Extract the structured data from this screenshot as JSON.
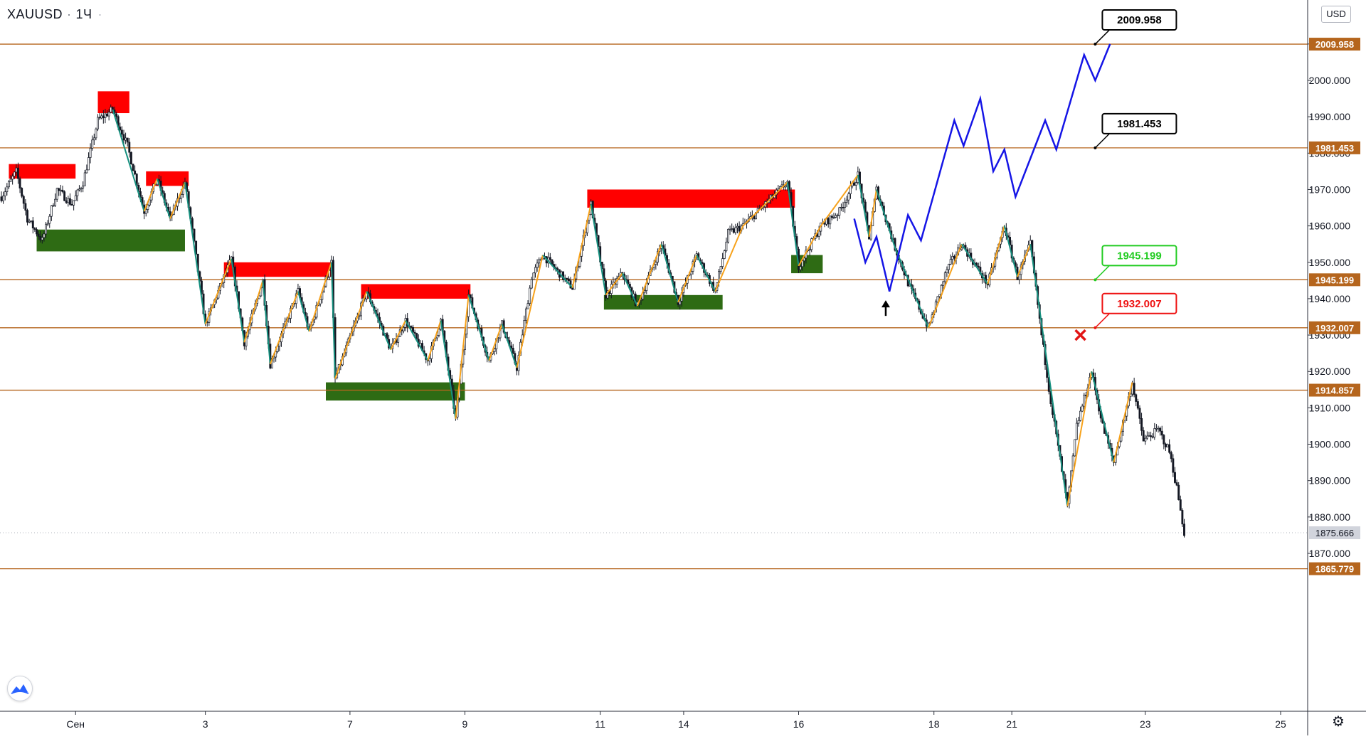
{
  "header": {
    "symbol": "XAUUSD",
    "interval": "1Ч"
  },
  "currency_button": "USD",
  "icons": {
    "logo": "tradingview-logo-icon",
    "settings": "gear-icon"
  },
  "colors": {
    "level_line": "#b5651d",
    "level_label_bg": "#b5651d",
    "bull_candle": "#131722",
    "bear_candle": "#131722",
    "supply_zone": "#ff0000",
    "demand_zone": "#2e6b14",
    "zigzag_up": "#f7a21b",
    "zigzag_down": "#17907f",
    "projection": "#1515e6",
    "current_price_bg": "#d1d4dc"
  },
  "chart_data": {
    "type": "candlestick",
    "title": "",
    "price_axis": {
      "range": [
        1862,
        2012
      ],
      "ticks": [
        {
          "value": 2010,
          "label": "2010.000"
        },
        {
          "value": 2000,
          "label": "2000.000"
        },
        {
          "value": 1990,
          "label": "1990.000"
        },
        {
          "value": 1980,
          "label": "1980.000"
        },
        {
          "value": 1970,
          "label": "1970.000"
        },
        {
          "value": 1960,
          "label": "1960.000"
        },
        {
          "value": 1950,
          "label": "1950.000"
        },
        {
          "value": 1940,
          "label": "1940.000"
        },
        {
          "value": 1930,
          "label": "1930.000"
        },
        {
          "value": 1920,
          "label": "1920.000"
        },
        {
          "value": 1910,
          "label": "1910.000"
        },
        {
          "value": 1900,
          "label": "1900.000"
        },
        {
          "value": 1890,
          "label": "1890.000"
        },
        {
          "value": 1880,
          "label": "1880.000"
        },
        {
          "value": 1870,
          "label": "1870.000"
        }
      ]
    },
    "time_axis": {
      "range": [
        0,
        690
      ],
      "ticks": [
        {
          "t": 40,
          "label": "Сен"
        },
        {
          "t": 110,
          "label": "3"
        },
        {
          "t": 188,
          "label": "7"
        },
        {
          "t": 250,
          "label": "9"
        },
        {
          "t": 323,
          "label": "11"
        },
        {
          "t": 368,
          "label": "14"
        },
        {
          "t": 430,
          "label": "16"
        },
        {
          "t": 503,
          "label": "18"
        },
        {
          "t": 545,
          "label": "21"
        },
        {
          "t": 617,
          "label": "23"
        },
        {
          "t": 690,
          "label": "25"
        }
      ]
    },
    "levels": [
      {
        "price": 2009.958,
        "label": "2009.958"
      },
      {
        "price": 1981.453,
        "label": "1981.453"
      },
      {
        "price": 1945.199,
        "label": "1945.199"
      },
      {
        "price": 1932.007,
        "label": "1932.007"
      },
      {
        "price": 1914.857,
        "label": "1914.857"
      },
      {
        "price": 1865.779,
        "label": "1865.779"
      }
    ],
    "current_price": {
      "price": 1875.666,
      "label": "1875.666"
    },
    "callouts": [
      {
        "text": "2009.958",
        "anchor_t": 590,
        "anchor_price": 2009.958,
        "color": "#000000"
      },
      {
        "text": "1981.453",
        "anchor_t": 590,
        "anchor_price": 1981.453,
        "color": "#000000"
      },
      {
        "text": "1945.199",
        "anchor_t": 590,
        "anchor_price": 1945.199,
        "color": "#22cc22"
      },
      {
        "text": "1932.007",
        "anchor_t": 590,
        "anchor_price": 1932.007,
        "color": "#ee1111"
      }
    ],
    "markers": [
      {
        "type": "arrow-up",
        "t": 477,
        "price": 1938
      },
      {
        "type": "cross",
        "t": 582,
        "price": 1930
      }
    ],
    "zones": [
      {
        "kind": "supply",
        "t0": 4,
        "t1": 40,
        "top": 1977,
        "bottom": 1973
      },
      {
        "kind": "supply",
        "t0": 52,
        "t1": 69,
        "top": 1997,
        "bottom": 1991
      },
      {
        "kind": "supply",
        "t0": 78,
        "t1": 101,
        "top": 1975,
        "bottom": 1971
      },
      {
        "kind": "supply",
        "t0": 120,
        "t1": 178,
        "top": 1950,
        "bottom": 1946
      },
      {
        "kind": "supply",
        "t0": 194,
        "t1": 253,
        "top": 1944,
        "bottom": 1940
      },
      {
        "kind": "supply",
        "t0": 316,
        "t1": 428,
        "top": 1970,
        "bottom": 1965
      },
      {
        "kind": "demand",
        "t0": 19,
        "t1": 99,
        "top": 1959,
        "bottom": 1953
      },
      {
        "kind": "demand",
        "t0": 175,
        "t1": 250,
        "top": 1917,
        "bottom": 1912
      },
      {
        "kind": "demand",
        "t0": 325,
        "t1": 389,
        "top": 1941,
        "bottom": 1937
      },
      {
        "kind": "demand",
        "t0": 426,
        "t1": 443,
        "top": 1952,
        "bottom": 1947
      }
    ],
    "zigzag": [
      {
        "t": 60,
        "price": 1992
      },
      {
        "t": 77,
        "price": 1964
      },
      {
        "t": 84,
        "price": 1973
      },
      {
        "t": 91,
        "price": 1962
      },
      {
        "t": 99,
        "price": 1972
      },
      {
        "t": 110,
        "price": 1933
      },
      {
        "t": 124,
        "price": 1951
      },
      {
        "t": 131,
        "price": 1928
      },
      {
        "t": 141,
        "price": 1945
      },
      {
        "t": 145,
        "price": 1922
      },
      {
        "t": 160,
        "price": 1942
      },
      {
        "t": 166,
        "price": 1931
      },
      {
        "t": 178,
        "price": 1950
      },
      {
        "t": 180,
        "price": 1918
      },
      {
        "t": 197,
        "price": 1942
      },
      {
        "t": 210,
        "price": 1926
      },
      {
        "t": 218,
        "price": 1934
      },
      {
        "t": 230,
        "price": 1923
      },
      {
        "t": 237,
        "price": 1934
      },
      {
        "t": 245,
        "price": 1907
      },
      {
        "t": 252,
        "price": 1941
      },
      {
        "t": 263,
        "price": 1923
      },
      {
        "t": 270,
        "price": 1933
      },
      {
        "t": 278,
        "price": 1921
      },
      {
        "t": 292,
        "price": 1952
      },
      {
        "t": 308,
        "price": 1943
      },
      {
        "t": 318,
        "price": 1966
      },
      {
        "t": 326,
        "price": 1941
      },
      {
        "t": 335,
        "price": 1947
      },
      {
        "t": 343,
        "price": 1938
      },
      {
        "t": 356,
        "price": 1955
      },
      {
        "t": 365,
        "price": 1939
      },
      {
        "t": 375,
        "price": 1952
      },
      {
        "t": 385,
        "price": 1942
      },
      {
        "t": 400,
        "price": 1960
      },
      {
        "t": 414,
        "price": 1967
      },
      {
        "t": 424,
        "price": 1972
      },
      {
        "t": 430,
        "price": 1949
      },
      {
        "t": 442,
        "price": 1960
      },
      {
        "t": 462,
        "price": 1974
      },
      {
        "t": 468,
        "price": 1957
      },
      {
        "t": 472,
        "price": 1970
      },
      {
        "t": 482,
        "price": 1954
      },
      {
        "t": 500,
        "price": 1932
      },
      {
        "t": 518,
        "price": 1955
      },
      {
        "t": 532,
        "price": 1944
      },
      {
        "t": 541,
        "price": 1960
      },
      {
        "t": 548,
        "price": 1946
      },
      {
        "t": 555,
        "price": 1955
      },
      {
        "t": 575,
        "price": 1883
      },
      {
        "t": 588,
        "price": 1920
      },
      {
        "t": 600,
        "price": 1895
      },
      {
        "t": 610,
        "price": 1917
      }
    ],
    "projection": [
      {
        "t": 460,
        "price": 1962
      },
      {
        "t": 466,
        "price": 1950
      },
      {
        "t": 472,
        "price": 1957
      },
      {
        "t": 479,
        "price": 1942
      },
      {
        "t": 489,
        "price": 1963
      },
      {
        "t": 496,
        "price": 1956
      },
      {
        "t": 514,
        "price": 1989
      },
      {
        "t": 519,
        "price": 1982
      },
      {
        "t": 528,
        "price": 1995
      },
      {
        "t": 535,
        "price": 1975
      },
      {
        "t": 541,
        "price": 1981
      },
      {
        "t": 547,
        "price": 1968
      },
      {
        "t": 563,
        "price": 1989
      },
      {
        "t": 569,
        "price": 1981
      },
      {
        "t": 584,
        "price": 2007
      },
      {
        "t": 590,
        "price": 2000
      },
      {
        "t": 598,
        "price": 2010
      }
    ],
    "price_path": [
      {
        "t": 0,
        "price": 1968
      },
      {
        "t": 8,
        "price": 1975
      },
      {
        "t": 14,
        "price": 1962
      },
      {
        "t": 22,
        "price": 1956
      },
      {
        "t": 30,
        "price": 1970
      },
      {
        "t": 38,
        "price": 1966
      },
      {
        "t": 44,
        "price": 1972
      },
      {
        "t": 52,
        "price": 1989
      },
      {
        "t": 60,
        "price": 1992
      },
      {
        "t": 68,
        "price": 1982
      },
      {
        "t": 77,
        "price": 1964
      },
      {
        "t": 84,
        "price": 1973
      },
      {
        "t": 91,
        "price": 1962
      },
      {
        "t": 99,
        "price": 1972
      },
      {
        "t": 104,
        "price": 1955
      },
      {
        "t": 110,
        "price": 1933
      },
      {
        "t": 124,
        "price": 1951
      },
      {
        "t": 131,
        "price": 1928
      },
      {
        "t": 141,
        "price": 1945
      },
      {
        "t": 145,
        "price": 1922
      },
      {
        "t": 160,
        "price": 1942
      },
      {
        "t": 166,
        "price": 1931
      },
      {
        "t": 178,
        "price": 1950
      },
      {
        "t": 180,
        "price": 1918
      },
      {
        "t": 197,
        "price": 1942
      },
      {
        "t": 210,
        "price": 1926
      },
      {
        "t": 218,
        "price": 1934
      },
      {
        "t": 230,
        "price": 1923
      },
      {
        "t": 237,
        "price": 1934
      },
      {
        "t": 245,
        "price": 1907
      },
      {
        "t": 252,
        "price": 1941
      },
      {
        "t": 263,
        "price": 1923
      },
      {
        "t": 270,
        "price": 1933
      },
      {
        "t": 278,
        "price": 1921
      },
      {
        "t": 286,
        "price": 1946
      },
      {
        "t": 292,
        "price": 1952
      },
      {
        "t": 308,
        "price": 1943
      },
      {
        "t": 318,
        "price": 1966
      },
      {
        "t": 326,
        "price": 1941
      },
      {
        "t": 335,
        "price": 1947
      },
      {
        "t": 343,
        "price": 1938
      },
      {
        "t": 356,
        "price": 1955
      },
      {
        "t": 365,
        "price": 1939
      },
      {
        "t": 375,
        "price": 1952
      },
      {
        "t": 385,
        "price": 1942
      },
      {
        "t": 392,
        "price": 1958
      },
      {
        "t": 400,
        "price": 1960
      },
      {
        "t": 414,
        "price": 1967
      },
      {
        "t": 424,
        "price": 1972
      },
      {
        "t": 430,
        "price": 1949
      },
      {
        "t": 442,
        "price": 1960
      },
      {
        "t": 452,
        "price": 1964
      },
      {
        "t": 462,
        "price": 1974
      },
      {
        "t": 468,
        "price": 1957
      },
      {
        "t": 472,
        "price": 1970
      },
      {
        "t": 482,
        "price": 1954
      },
      {
        "t": 490,
        "price": 1943
      },
      {
        "t": 500,
        "price": 1932
      },
      {
        "t": 510,
        "price": 1948
      },
      {
        "t": 518,
        "price": 1955
      },
      {
        "t": 532,
        "price": 1944
      },
      {
        "t": 541,
        "price": 1960
      },
      {
        "t": 548,
        "price": 1946
      },
      {
        "t": 555,
        "price": 1955
      },
      {
        "t": 561,
        "price": 1930
      },
      {
        "t": 566,
        "price": 1912
      },
      {
        "t": 575,
        "price": 1883
      },
      {
        "t": 580,
        "price": 1905
      },
      {
        "t": 588,
        "price": 1920
      },
      {
        "t": 594,
        "price": 1905
      },
      {
        "t": 600,
        "price": 1895
      },
      {
        "t": 610,
        "price": 1917
      },
      {
        "t": 616,
        "price": 1901
      },
      {
        "t": 624,
        "price": 1904
      },
      {
        "t": 630,
        "price": 1898
      },
      {
        "t": 634,
        "price": 1888
      },
      {
        "t": 638,
        "price": 1875.666
      }
    ]
  }
}
